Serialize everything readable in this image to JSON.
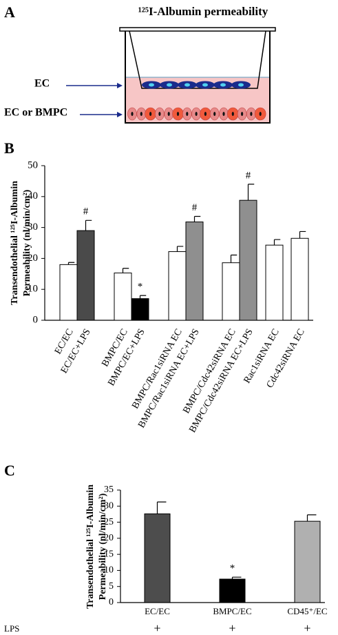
{
  "diagram": {
    "panel_label": "A",
    "title": "¹²⁵I-Albumin permeability",
    "labels": [
      "EC",
      "EC or BMPC"
    ]
  },
  "chart_data": [
    {
      "type": "bar",
      "panel_label": "B",
      "ylabel": [
        "Transendothelial ¹²⁵I-Albumin",
        "Permeability (nl/min/cm²)"
      ],
      "categories": [
        "EC/EC",
        "EC/EC+LPS",
        "BMPC/EC",
        "BMPC/EC+LPS",
        "BMPC/Rac1siRNA EC",
        "BMPC/Rac1siRNA EC+LPS",
        "BMPC/Cdc42siRNA EC",
        "BMPC/Cdc42siRNA EC+LPS",
        "Rac1siRNA EC",
        "Cdc42siRNA EC"
      ],
      "values": [
        18,
        29,
        15.3,
        7,
        22.2,
        31.8,
        18.6,
        38.8,
        24.3,
        26.5
      ],
      "errors": [
        0.7,
        3.3,
        1.5,
        1,
        1.7,
        1.8,
        2.5,
        5.2,
        1.8,
        2.2
      ],
      "colors": [
        "#ffffff",
        "#4a4a4a",
        "#ffffff",
        "#000000",
        "#ffffff",
        "#8f8f8f",
        "#ffffff",
        "#8f8f8f",
        "#ffffff",
        "#ffffff"
      ],
      "annotations": [
        null,
        "#",
        null,
        "*",
        null,
        "#",
        null,
        "#",
        null,
        null
      ],
      "ylim": [
        0,
        50
      ],
      "yticks": [
        0,
        10,
        20,
        30,
        40,
        50
      ]
    },
    {
      "type": "bar",
      "panel_label": "C",
      "ylabel": [
        "Transendothelial ¹²⁵I-Albumin",
        "Permeability  (nl/min/cm²)"
      ],
      "categories": [
        "EC/EC",
        "BMPC/EC",
        "CD45⁺/EC"
      ],
      "values": [
        27.6,
        7.3,
        25.3
      ],
      "errors": [
        3.7,
        0.6,
        2
      ],
      "colors": [
        "#4d4d4d",
        "#000000",
        "#b0b0b0"
      ],
      "annotations": [
        null,
        "*",
        null
      ],
      "row_label": "LPS",
      "row_values": [
        "+",
        "+",
        "+"
      ],
      "ylim": [
        0,
        35
      ],
      "yticks": [
        0,
        5,
        10,
        15,
        20,
        25,
        30,
        35
      ]
    }
  ]
}
